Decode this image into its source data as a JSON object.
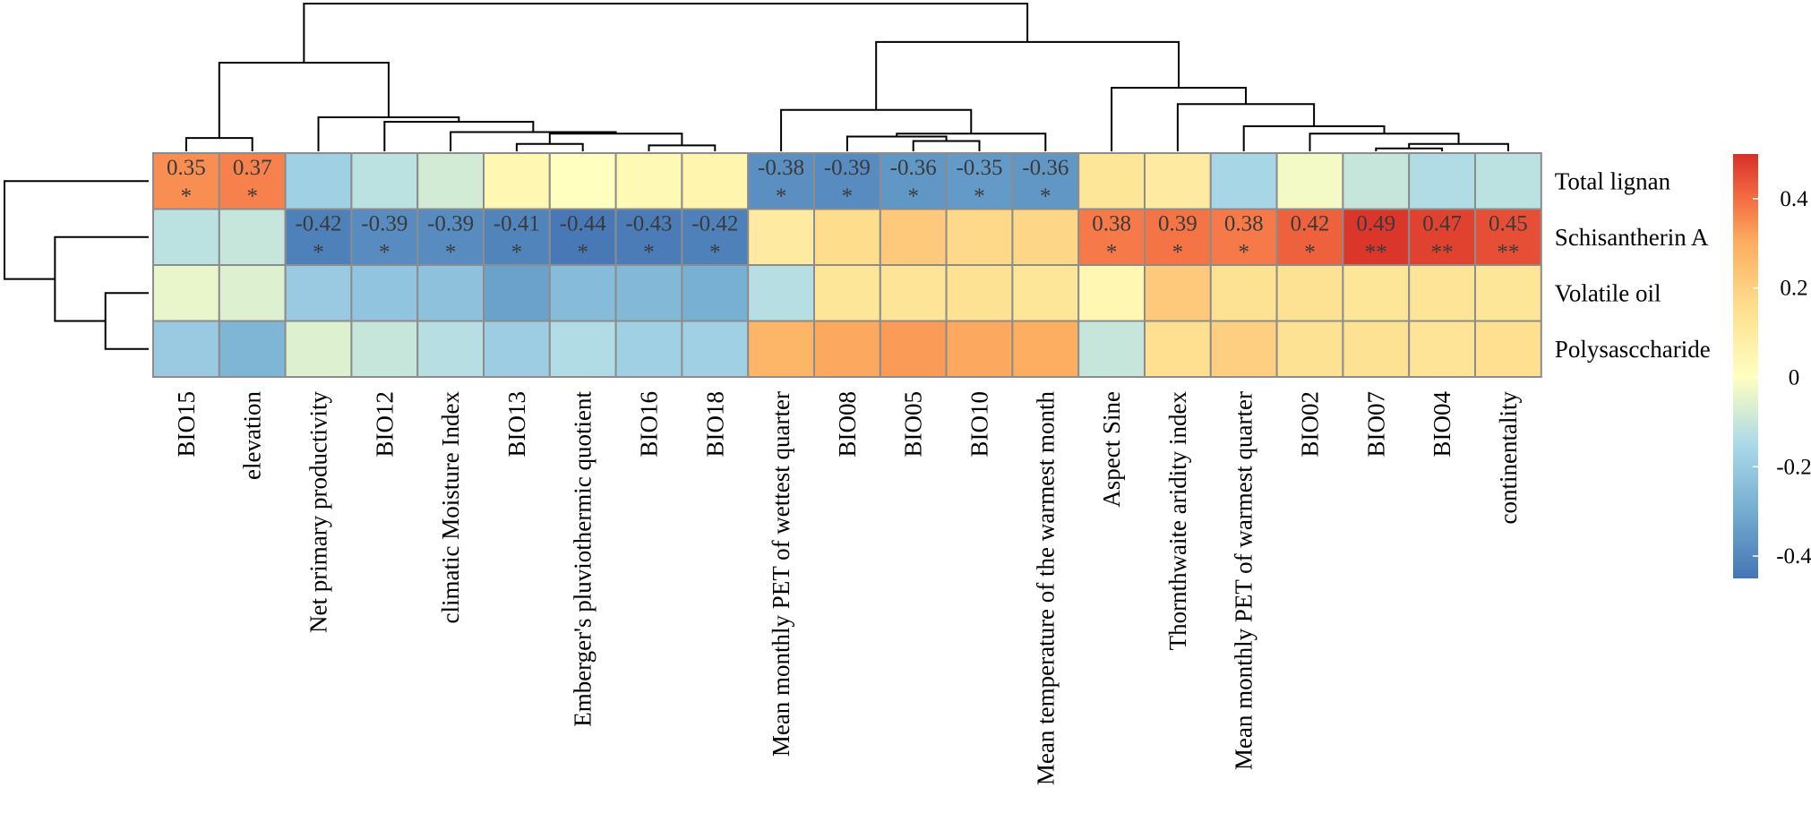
{
  "chart_data": {
    "type": "heatmap",
    "title": "",
    "rows": [
      "Total lignan",
      "Schisantherin A",
      "Volatile oil",
      "Polysasccharide"
    ],
    "columns": [
      "BIO15",
      "elevation",
      "Net primary productivity",
      "BIO12",
      "climatic Moisture Index",
      "BIO13",
      "Emberger's pluviothermic quotient",
      "BIO16",
      "BIO18",
      "Mean monthly PET of wettest quarter",
      "BIO08",
      "BIO05",
      "BIO10",
      "Mean temperature of the warmest month",
      "Aspect Sine",
      "Thornthwaite aridity index",
      "Mean monthly PET of warmest quarter",
      "BIO02",
      "BIO07",
      "BIO04",
      "continentality"
    ],
    "values": [
      [
        0.35,
        0.37,
        -0.18,
        -0.12,
        -0.08,
        0.04,
        0.0,
        0.03,
        0.05,
        -0.38,
        -0.39,
        -0.36,
        -0.35,
        -0.36,
        0.12,
        0.1,
        -0.16,
        -0.02,
        -0.1,
        -0.14,
        -0.12
      ],
      [
        -0.12,
        -0.1,
        -0.42,
        -0.39,
        -0.39,
        -0.41,
        -0.44,
        -0.43,
        -0.42,
        0.1,
        0.16,
        0.22,
        0.17,
        0.18,
        0.38,
        0.39,
        0.38,
        0.42,
        0.49,
        0.47,
        0.45
      ],
      [
        -0.04,
        -0.06,
        -0.2,
        -0.22,
        -0.23,
        -0.33,
        -0.25,
        -0.26,
        -0.29,
        -0.13,
        0.12,
        0.13,
        0.14,
        0.12,
        0.04,
        0.22,
        0.14,
        0.14,
        0.12,
        0.13,
        0.12
      ],
      [
        -0.2,
        -0.27,
        -0.06,
        -0.1,
        -0.13,
        -0.19,
        -0.14,
        -0.18,
        -0.18,
        0.28,
        0.31,
        0.33,
        0.31,
        0.3,
        -0.1,
        0.15,
        0.2,
        0.14,
        0.14,
        0.13,
        0.15
      ]
    ],
    "labels": [
      [
        [
          "0.35",
          "*"
        ],
        [
          "0.37",
          "*"
        ],
        null,
        null,
        null,
        null,
        null,
        null,
        null,
        [
          "-0.38",
          "*"
        ],
        [
          "-0.39",
          "*"
        ],
        [
          "-0.36",
          "*"
        ],
        [
          "-0.35",
          "*"
        ],
        [
          "-0.36",
          "*"
        ],
        null,
        null,
        null,
        null,
        null,
        null,
        null
      ],
      [
        null,
        null,
        [
          "-0.42",
          "*"
        ],
        [
          "-0.39",
          "*"
        ],
        [
          "-0.39",
          "*"
        ],
        [
          "-0.41",
          "*"
        ],
        [
          "-0.44",
          "*"
        ],
        [
          "-0.43",
          "*"
        ],
        [
          "-0.42",
          "*"
        ],
        null,
        null,
        null,
        null,
        null,
        [
          "0.38",
          "*"
        ],
        [
          "0.39",
          "*"
        ],
        [
          "0.38",
          "*"
        ],
        [
          "0.42",
          "*"
        ],
        [
          "0.49",
          "**"
        ],
        [
          "0.47",
          "**"
        ],
        [
          "0.45",
          "**"
        ]
      ],
      [
        null,
        null,
        null,
        null,
        null,
        null,
        null,
        null,
        null,
        null,
        null,
        null,
        null,
        null,
        null,
        null,
        null,
        null,
        null,
        null,
        null
      ],
      [
        null,
        null,
        null,
        null,
        null,
        null,
        null,
        null,
        null,
        null,
        null,
        null,
        null,
        null,
        null,
        null,
        null,
        null,
        null,
        null,
        null
      ]
    ],
    "color_scale": {
      "min": -0.45,
      "max": 0.5,
      "stops": [
        {
          "value": -0.45,
          "color": "#4575b4"
        },
        {
          "value": -0.3,
          "color": "#74add1"
        },
        {
          "value": -0.15,
          "color": "#abd9e9"
        },
        {
          "value": 0.0,
          "color": "#ffffbf"
        },
        {
          "value": 0.15,
          "color": "#fee090"
        },
        {
          "value": 0.3,
          "color": "#fdae61"
        },
        {
          "value": 0.4,
          "color": "#f46d43"
        },
        {
          "value": 0.5,
          "color": "#d73027"
        }
      ]
    },
    "legend": {
      "position": "right",
      "ticks": [
        {
          "value": 0.4,
          "label": "0.4"
        },
        {
          "value": 0.2,
          "label": "0.2"
        },
        {
          "value": 0.0,
          "label": "0"
        },
        {
          "value": -0.2,
          "label": "-0.2"
        },
        {
          "value": -0.4,
          "label": "-0.4"
        }
      ]
    },
    "row_dendrogram": {
      "merges": [
        [
          2,
          3
        ],
        [
          1,
          "m0"
        ],
        [
          0,
          "m1"
        ]
      ],
      "heights": [
        0.3,
        0.65,
        1.0
      ]
    },
    "col_dendrogram": {
      "merges": [
        [
          0,
          1
        ],
        [
          5,
          6
        ],
        [
          7,
          8
        ],
        [
          "m1",
          "m2"
        ],
        [
          4,
          "m3"
        ],
        [
          3,
          "m4"
        ],
        [
          2,
          "m5"
        ],
        [
          "m0",
          "m6"
        ],
        [
          11,
          12
        ],
        [
          10,
          "m8"
        ],
        [
          13,
          "m9"
        ],
        [
          9,
          "m10"
        ],
        [
          18,
          19
        ],
        [
          20,
          "m12"
        ],
        [
          17,
          "m13"
        ],
        [
          16,
          "m14"
        ],
        [
          15,
          "m15"
        ],
        [
          14,
          "m16"
        ],
        [
          "m11",
          "m17"
        ],
        [
          "m7",
          "m18"
        ]
      ],
      "heights": [
        0.09,
        0.05,
        0.04,
        0.12,
        0.13,
        0.2,
        0.23,
        0.6,
        0.07,
        0.1,
        0.12,
        0.28,
        0.02,
        0.05,
        0.12,
        0.17,
        0.32,
        0.43,
        0.74,
        1.0
      ]
    }
  }
}
